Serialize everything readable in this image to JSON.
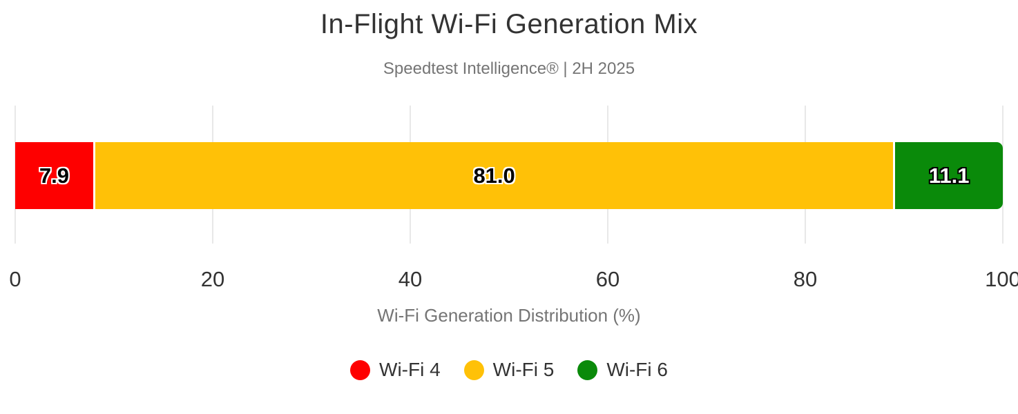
{
  "header": {
    "title": "In-Flight Wi-Fi Generation Mix",
    "subtitle": "Speedtest Intelligence® | 2H 2025"
  },
  "chart_data": {
    "type": "bar",
    "orientation": "horizontal",
    "stacked": true,
    "title": "In-Flight Wi-Fi Generation Mix",
    "subtitle": "Speedtest Intelligence® | 2H 2025",
    "xlabel": "Wi-Fi Generation Distribution (%)",
    "xlim": [
      0,
      100
    ],
    "x_ticks": [
      0,
      20,
      40,
      60,
      80,
      100
    ],
    "grid": "vertical-only",
    "legend_position": "bottom",
    "series": [
      {
        "name": "Wi-Fi 4",
        "value": 7.9,
        "label": "7.9",
        "color": "#fe0000",
        "label_color": "#000000",
        "label_outline": "#ffffff"
      },
      {
        "name": "Wi-Fi 5",
        "value": 81.0,
        "label": "81.0",
        "color": "#ffc107",
        "label_color": "#000000",
        "label_outline": "#ffffff"
      },
      {
        "name": "Wi-Fi 6",
        "value": 11.1,
        "label": "11.1",
        "color": "#0a8a0a",
        "label_color": "#ffffff",
        "label_outline": "#000000"
      }
    ]
  },
  "colors": {
    "background": "#ffffff",
    "title_text": "#333333",
    "muted_text": "#757575",
    "tick_text": "#333333",
    "gridline": "#e8e8e8",
    "segment_gap": "#ffffff"
  }
}
